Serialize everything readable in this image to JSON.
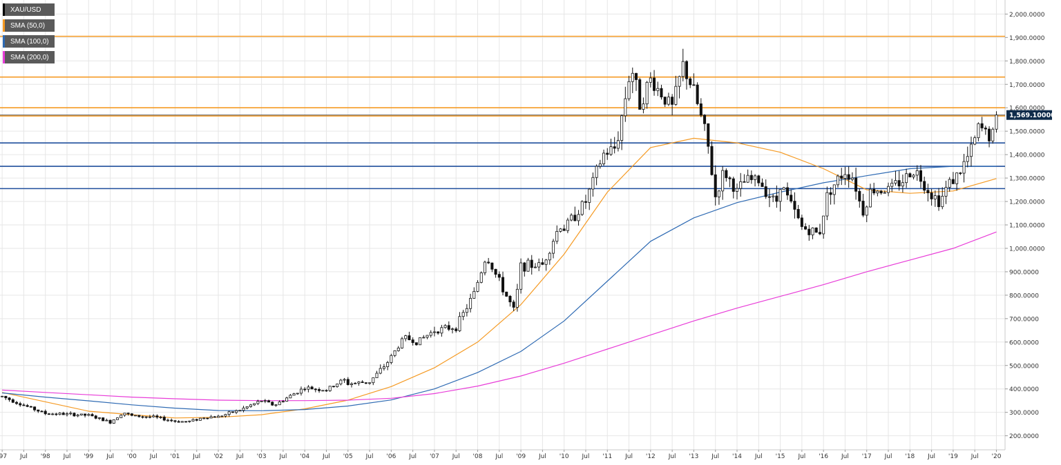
{
  "symbol": "XAU/USD",
  "legend": [
    {
      "label": "XAU/USD",
      "color": "#000000"
    },
    {
      "label": "SMA (50,0)",
      "color": "#f59a23"
    },
    {
      "label": "SMA (100,0)",
      "color": "#2e6ab3"
    },
    {
      "label": "SMA (200,0)",
      "color": "#e83cd8"
    }
  ],
  "price_badge": "1,569.10000",
  "chart_data": {
    "type": "candlestick",
    "interval": "monthly",
    "title": "",
    "ylim": [
      140,
      2060
    ],
    "y_ticks": [
      {
        "value": 200,
        "label": "200.0000"
      },
      {
        "value": 300,
        "label": "300.0000"
      },
      {
        "value": 400,
        "label": "400.0000"
      },
      {
        "value": 500,
        "label": "500.0000"
      },
      {
        "value": 600,
        "label": "600.0000"
      },
      {
        "value": 700,
        "label": "700.0000"
      },
      {
        "value": 800,
        "label": "800.0000"
      },
      {
        "value": 900,
        "label": "900.0000"
      },
      {
        "value": 1000,
        "label": "1,000.0000"
      },
      {
        "value": 1100,
        "label": "1,100.0000"
      },
      {
        "value": 1200,
        "label": "1,200.0000"
      },
      {
        "value": 1300,
        "label": "1,300.0000"
      },
      {
        "value": 1400,
        "label": "1,400.0000"
      },
      {
        "value": 1500,
        "label": "1,500.0000"
      },
      {
        "value": 1600,
        "label": "1,600.0000"
      },
      {
        "value": 1700,
        "label": "1,700.0000"
      },
      {
        "value": 1800,
        "label": "1,800.0000"
      },
      {
        "value": 1900,
        "label": "1,900.0000"
      },
      {
        "value": 2000,
        "label": "2,000.0000"
      }
    ],
    "x_range": [
      1996.95,
      2020.2
    ],
    "x_ticks": [
      {
        "t": 1997.0,
        "label": "'97"
      },
      {
        "t": 1997.5,
        "label": "Jul"
      },
      {
        "t": 1998.0,
        "label": "'98"
      },
      {
        "t": 1998.5,
        "label": "Jul"
      },
      {
        "t": 1999.0,
        "label": "'99"
      },
      {
        "t": 1999.5,
        "label": "Jul"
      },
      {
        "t": 2000.0,
        "label": "'00"
      },
      {
        "t": 2000.5,
        "label": "Jul"
      },
      {
        "t": 2001.0,
        "label": "'01"
      },
      {
        "t": 2001.5,
        "label": "Jul"
      },
      {
        "t": 2002.0,
        "label": "'02"
      },
      {
        "t": 2002.5,
        "label": "Jul"
      },
      {
        "t": 2003.0,
        "label": "'03"
      },
      {
        "t": 2003.5,
        "label": "Jul"
      },
      {
        "t": 2004.0,
        "label": "'04"
      },
      {
        "t": 2004.5,
        "label": "Jul"
      },
      {
        "t": 2005.0,
        "label": "'05"
      },
      {
        "t": 2005.5,
        "label": "Jul"
      },
      {
        "t": 2006.0,
        "label": "'06"
      },
      {
        "t": 2006.5,
        "label": "Jul"
      },
      {
        "t": 2007.0,
        "label": "'07"
      },
      {
        "t": 2007.5,
        "label": "Jul"
      },
      {
        "t": 2008.0,
        "label": "'08"
      },
      {
        "t": 2008.5,
        "label": "Jul"
      },
      {
        "t": 2009.0,
        "label": "'09"
      },
      {
        "t": 2009.5,
        "label": "Jul"
      },
      {
        "t": 2010.0,
        "label": "'10"
      },
      {
        "t": 2010.5,
        "label": "Jul"
      },
      {
        "t": 2011.0,
        "label": "'11"
      },
      {
        "t": 2011.5,
        "label": "Jul"
      },
      {
        "t": 2012.0,
        "label": "'12"
      },
      {
        "t": 2012.5,
        "label": "Jul"
      },
      {
        "t": 2013.0,
        "label": "'13"
      },
      {
        "t": 2013.5,
        "label": "Jul"
      },
      {
        "t": 2014.0,
        "label": "'14"
      },
      {
        "t": 2014.5,
        "label": "Jul"
      },
      {
        "t": 2015.0,
        "label": "'15"
      },
      {
        "t": 2015.5,
        "label": "Jul"
      },
      {
        "t": 2016.0,
        "label": "'16"
      },
      {
        "t": 2016.5,
        "label": "Jul"
      },
      {
        "t": 2017.0,
        "label": "'17"
      },
      {
        "t": 2017.5,
        "label": "Jul"
      },
      {
        "t": 2018.0,
        "label": "'18"
      },
      {
        "t": 2018.5,
        "label": "Jul"
      },
      {
        "t": 2019.0,
        "label": "'19"
      },
      {
        "t": 2019.5,
        "label": "Jul"
      },
      {
        "t": 2020.0,
        "label": "'20"
      }
    ],
    "grid": true,
    "legend_position": "top-left",
    "horizontal_levels": [
      {
        "value": 1905,
        "color": "#f59a23"
      },
      {
        "value": 1731,
        "color": "#f59a23"
      },
      {
        "value": 1600,
        "color": "#f59a23"
      },
      {
        "value": 1565,
        "color": "#f59a23"
      },
      {
        "value": 1450,
        "color": "#1f4e9c"
      },
      {
        "value": 1350,
        "color": "#1f4e9c"
      },
      {
        "value": 1255,
        "color": "#1f4e9c"
      }
    ],
    "current_price": {
      "value": 1569.1,
      "color": "#0f2b4a"
    },
    "price_anchors": [
      [
        1997.0,
        368
      ],
      [
        1997.5,
        330
      ],
      [
        1998.0,
        295
      ],
      [
        1998.5,
        292
      ],
      [
        1999.0,
        287
      ],
      [
        1999.5,
        258
      ],
      [
        1999.8,
        300
      ],
      [
        2000.0,
        285
      ],
      [
        2000.5,
        280
      ],
      [
        2001.0,
        262
      ],
      [
        2001.3,
        260
      ],
      [
        2001.7,
        280
      ],
      [
        2002.0,
        282
      ],
      [
        2002.5,
        310
      ],
      [
        2003.0,
        350
      ],
      [
        2003.3,
        330
      ],
      [
        2003.8,
        385
      ],
      [
        2004.0,
        405
      ],
      [
        2004.5,
        395
      ],
      [
        2004.9,
        440
      ],
      [
        2005.0,
        422
      ],
      [
        2005.5,
        430
      ],
      [
        2005.9,
        510
      ],
      [
        2006.3,
        620
      ],
      [
        2006.6,
        600
      ],
      [
        2007.0,
        650
      ],
      [
        2007.5,
        665
      ],
      [
        2007.9,
        800
      ],
      [
        2008.2,
        970
      ],
      [
        2008.6,
        820
      ],
      [
        2008.85,
        730
      ],
      [
        2009.0,
        925
      ],
      [
        2009.5,
        930
      ],
      [
        2009.9,
        1100
      ],
      [
        2010.0,
        1085
      ],
      [
        2010.5,
        1200
      ],
      [
        2010.9,
        1400
      ],
      [
        2011.2,
        1430
      ],
      [
        2011.55,
        1780
      ],
      [
        2011.75,
        1620
      ],
      [
        2012.0,
        1720
      ],
      [
        2012.5,
        1600
      ],
      [
        2012.75,
        1780
      ],
      [
        2013.0,
        1670
      ],
      [
        2013.3,
        1470
      ],
      [
        2013.5,
        1220
      ],
      [
        2013.7,
        1330
      ],
      [
        2014.0,
        1240
      ],
      [
        2014.2,
        1290
      ],
      [
        2014.5,
        1290
      ],
      [
        2014.9,
        1190
      ],
      [
        2015.0,
        1280
      ],
      [
        2015.5,
        1090
      ],
      [
        2015.9,
        1060
      ],
      [
        2016.1,
        1240
      ],
      [
        2016.5,
        1330
      ],
      [
        2016.7,
        1300
      ],
      [
        2016.9,
        1150
      ],
      [
        2017.1,
        1250
      ],
      [
        2017.5,
        1250
      ],
      [
        2017.9,
        1300
      ],
      [
        2018.1,
        1340
      ],
      [
        2018.5,
        1230
      ],
      [
        2018.7,
        1200
      ],
      [
        2018.9,
        1280
      ],
      [
        2019.1,
        1310
      ],
      [
        2019.4,
        1410
      ],
      [
        2019.6,
        1520
      ],
      [
        2019.9,
        1470
      ],
      [
        2020.0,
        1569
      ]
    ],
    "series": [
      {
        "name": "SMA (50,0)",
        "color": "#f59a23",
        "values": [
          [
            1997.0,
            385
          ],
          [
            1998.0,
            345
          ],
          [
            1999.0,
            305
          ],
          [
            2000.0,
            290
          ],
          [
            2001.0,
            276
          ],
          [
            2002.0,
            279
          ],
          [
            2003.0,
            290
          ],
          [
            2004.0,
            315
          ],
          [
            2005.0,
            352
          ],
          [
            2006.0,
            410
          ],
          [
            2007.0,
            490
          ],
          [
            2008.0,
            600
          ],
          [
            2009.0,
            760
          ],
          [
            2010.0,
            975
          ],
          [
            2011.0,
            1240
          ],
          [
            2012.0,
            1430
          ],
          [
            2013.0,
            1470
          ],
          [
            2014.0,
            1450
          ],
          [
            2015.0,
            1410
          ],
          [
            2016.0,
            1340
          ],
          [
            2017.0,
            1250
          ],
          [
            2018.0,
            1235
          ],
          [
            2019.0,
            1245
          ],
          [
            2020.0,
            1298
          ]
        ]
      },
      {
        "name": "SMA (100,0)",
        "color": "#2e6ab3",
        "values": [
          [
            1997.0,
            383
          ],
          [
            1998.0,
            365
          ],
          [
            1999.0,
            349
          ],
          [
            2000.0,
            332
          ],
          [
            2001.0,
            318
          ],
          [
            2002.0,
            308
          ],
          [
            2003.0,
            307
          ],
          [
            2004.0,
            312
          ],
          [
            2005.0,
            327
          ],
          [
            2006.0,
            353
          ],
          [
            2007.0,
            400
          ],
          [
            2008.0,
            470
          ],
          [
            2009.0,
            560
          ],
          [
            2010.0,
            690
          ],
          [
            2011.0,
            860
          ],
          [
            2012.0,
            1030
          ],
          [
            2013.0,
            1130
          ],
          [
            2014.0,
            1195
          ],
          [
            2015.0,
            1240
          ],
          [
            2016.0,
            1280
          ],
          [
            2017.0,
            1310
          ],
          [
            2018.0,
            1340
          ],
          [
            2019.0,
            1350
          ],
          [
            2020.0,
            1350
          ]
        ]
      },
      {
        "name": "SMA (200,0)",
        "color": "#e83cd8",
        "values": [
          [
            1997.0,
            395
          ],
          [
            1998.0,
            385
          ],
          [
            1999.0,
            375
          ],
          [
            2000.0,
            365
          ],
          [
            2001.0,
            358
          ],
          [
            2002.0,
            352
          ],
          [
            2003.0,
            350
          ],
          [
            2004.0,
            350
          ],
          [
            2005.0,
            352
          ],
          [
            2006.0,
            360
          ],
          [
            2007.0,
            380
          ],
          [
            2008.0,
            412
          ],
          [
            2009.0,
            455
          ],
          [
            2010.0,
            510
          ],
          [
            2011.0,
            570
          ],
          [
            2012.0,
            630
          ],
          [
            2013.0,
            690
          ],
          [
            2014.0,
            745
          ],
          [
            2015.0,
            795
          ],
          [
            2016.0,
            845
          ],
          [
            2017.0,
            900
          ],
          [
            2018.0,
            950
          ],
          [
            2019.0,
            1000
          ],
          [
            2020.0,
            1070
          ]
        ]
      }
    ]
  }
}
